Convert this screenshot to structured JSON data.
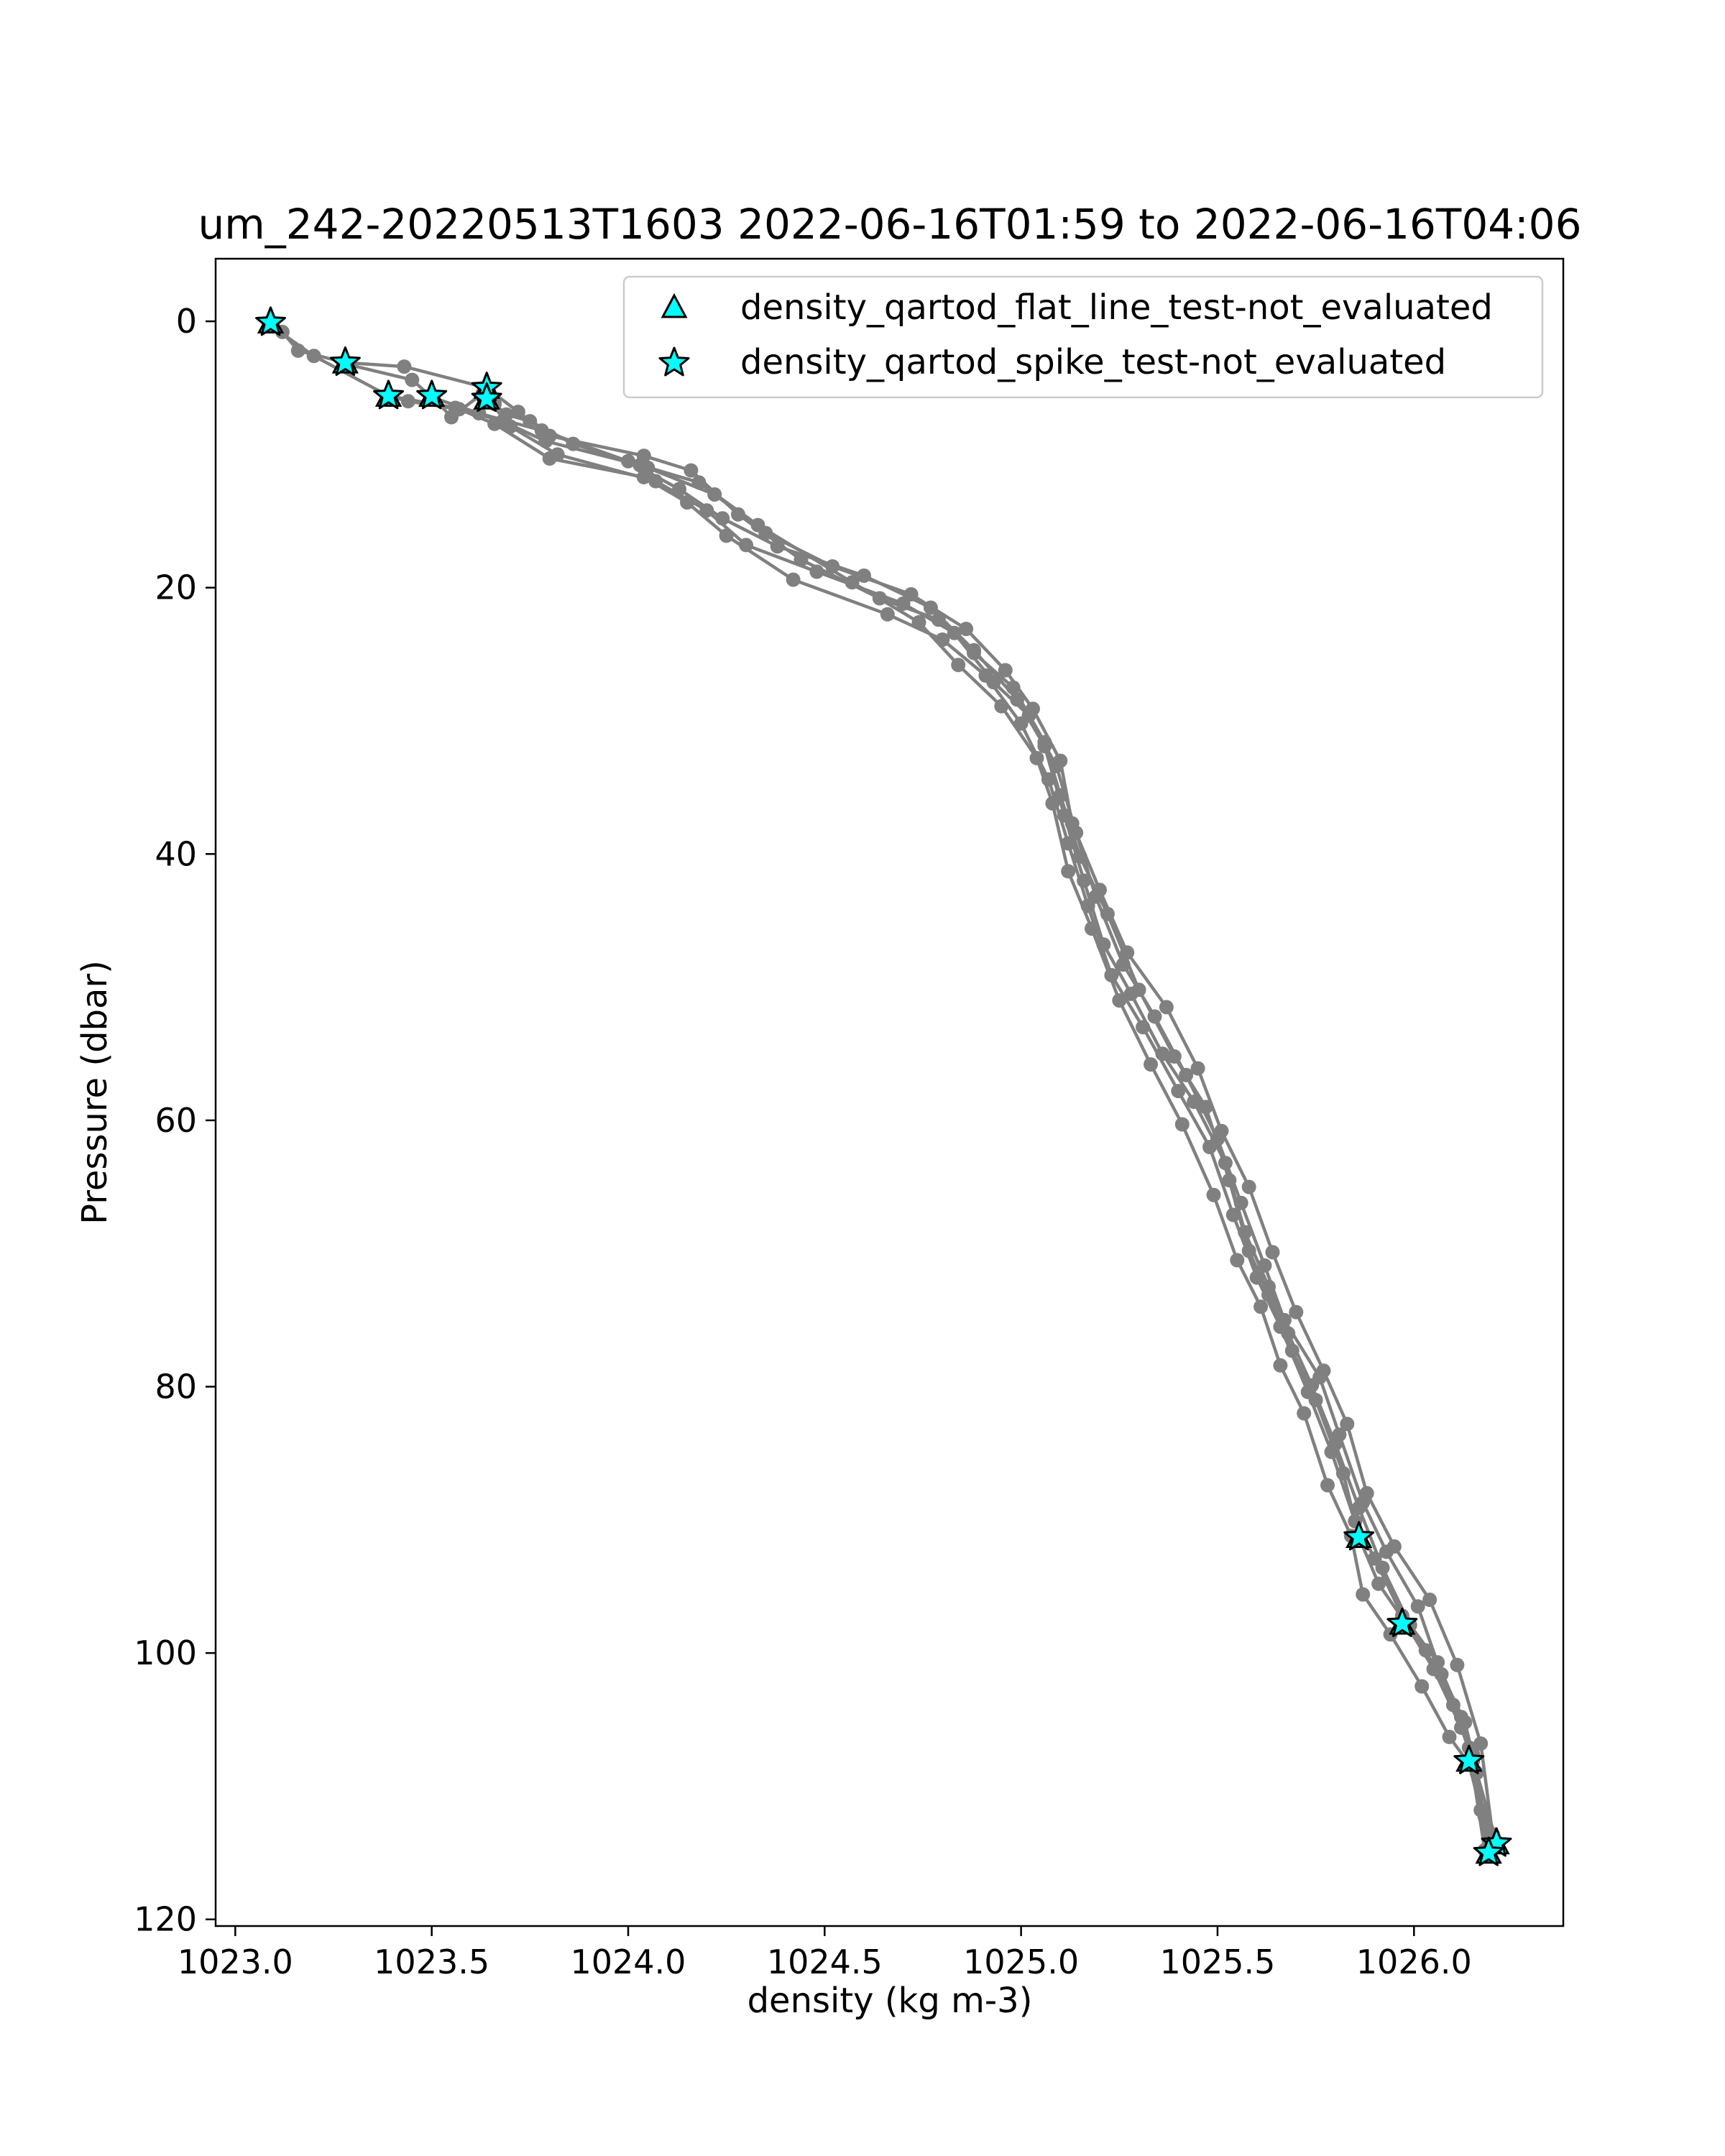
{
  "chart_data": {
    "type": "line",
    "title": "um_242-20220513T1603 2022-06-16T01:59 to 2022-06-16T04:06",
    "xlabel": "density (kg m-3)",
    "ylabel": "Pressure (dbar)",
    "xlim": [
      1022.95,
      1026.38
    ],
    "ylim": [
      120.5,
      -4.7
    ],
    "y_inverted": true,
    "x_ticks": [
      1023.0,
      1023.5,
      1024.0,
      1024.5,
      1025.0,
      1025.5,
      1026.0
    ],
    "x_tick_labels": [
      "1023.0",
      "1023.5",
      "1024.0",
      "1024.5",
      "1025.0",
      "1025.5",
      "1026.0"
    ],
    "y_ticks": [
      0,
      20,
      40,
      60,
      80,
      100,
      120
    ],
    "y_tick_labels": [
      "0",
      "20",
      "40",
      "60",
      "80",
      "100",
      "120"
    ],
    "grid": false,
    "legend_position": "upper-right",
    "line_color": "#808080",
    "marker_color": "#00ffff",
    "series": [
      {
        "x": [
          1023.09,
          1023.12,
          1023.16,
          1023.28,
          1023.43,
          1023.64,
          1023.72,
          1023.8,
          1024.04,
          1024.16,
          1024.28,
          1024.44,
          1024.64,
          1024.79,
          1024.88,
          1024.98,
          1025.06,
          1025.1,
          1025.15,
          1025.22,
          1025.3,
          1025.39,
          1025.47,
          1025.53,
          1025.58,
          1025.63,
          1025.69,
          1025.75,
          1025.82,
          1025.86,
          1025.91,
          1025.98,
          1026.05,
          1026.12,
          1026.15,
          1026.18,
          1026.21
        ],
        "y": [
          0,
          0.8,
          2.2,
          3.1,
          3.4,
          5.0,
          6.8,
          8.6,
          10.1,
          11.2,
          14.5,
          17.9,
          20.8,
          22.4,
          24.9,
          27.5,
          31.6,
          35.6,
          40.2,
          44.5,
          50.2,
          55.2,
          59.0,
          64.5,
          69.8,
          73.1,
          77.3,
          81.0,
          86.5,
          91.3,
          94.8,
          97.8,
          101.2,
          105.6,
          108.1,
          112.3,
          114.3
        ]
      },
      {
        "x": [
          1023.09,
          1023.2,
          1023.39,
          1023.56,
          1023.68,
          1023.79,
          1024.03,
          1024.18,
          1024.33,
          1024.57,
          1024.74,
          1024.84,
          1024.95,
          1025.04,
          1025.08,
          1025.12,
          1025.18,
          1025.25,
          1025.33,
          1025.41,
          1025.49,
          1025.55,
          1025.61,
          1025.66,
          1025.72,
          1025.78,
          1025.84,
          1025.87,
          1025.94,
          1026.02,
          1026.09,
          1026.14,
          1026.17,
          1026.2
        ],
        "y": [
          0.3,
          2.6,
          5.6,
          6.5,
          7.5,
          9.0,
          10.8,
          12.1,
          15.3,
          19.6,
          22.6,
          25.8,
          28.9,
          32.8,
          36.2,
          41.3,
          45.6,
          51.0,
          55.8,
          60.3,
          65.6,
          70.5,
          74.0,
          78.4,
          82.0,
          87.4,
          91.2,
          95.6,
          98.6,
          102.5,
          106.3,
          108.3,
          111.8,
          114.7
        ]
      },
      {
        "x": [
          1023.28,
          1023.45,
          1023.5,
          1023.62,
          1023.78,
          1024.0,
          1024.13,
          1024.24,
          1024.38,
          1024.6,
          1024.77,
          1024.88,
          1024.99,
          1025.06,
          1025.11,
          1025.16,
          1025.21,
          1025.28,
          1025.36,
          1025.44,
          1025.52,
          1025.57,
          1025.63,
          1025.68,
          1025.74,
          1025.8,
          1025.86,
          1025.92,
          1025.99,
          1026.06,
          1026.12,
          1026.15,
          1026.19
        ],
        "y": [
          3.2,
          4.4,
          5.7,
          6.9,
          8.2,
          10.5,
          12.6,
          14.8,
          16.9,
          19.1,
          21.5,
          24.7,
          28.4,
          31.9,
          37.1,
          42.0,
          46.8,
          50.5,
          55.0,
          58.6,
          63.2,
          68.4,
          72.5,
          76.0,
          79.9,
          84.3,
          89.1,
          93.6,
          97.9,
          100.7,
          104.8,
          107.6,
          115.2
        ]
      },
      {
        "x": [
          1023.39,
          1023.44,
          1023.57,
          1023.66,
          1023.8,
          1024.04,
          1024.15,
          1024.25,
          1024.42,
          1024.66,
          1024.8,
          1024.91,
          1025.0,
          1025.07,
          1025.12,
          1025.17,
          1025.23,
          1025.31,
          1025.4,
          1025.48,
          1025.54,
          1025.6,
          1025.66,
          1025.73,
          1025.79,
          1025.85,
          1025.9,
          1025.97,
          1026.03,
          1026.1,
          1026.14,
          1026.18
        ],
        "y": [
          5.6,
          6.0,
          6.6,
          7.7,
          10.3,
          11.7,
          13.6,
          16.1,
          19.4,
          22.0,
          23.9,
          26.6,
          30.2,
          34.4,
          39.2,
          43.9,
          49.1,
          53.0,
          57.8,
          62.0,
          67.1,
          71.8,
          75.5,
          80.4,
          84.9,
          90.1,
          92.9,
          97.2,
          99.8,
          103.9,
          107.1,
          114.8
        ]
      },
      {
        "x": [
          1023.5,
          1023.55,
          1023.63,
          1023.7,
          1023.82,
          1024.07,
          1024.2,
          1024.3,
          1024.48,
          1024.7,
          1024.83,
          1024.93,
          1025.02,
          1025.09,
          1025.14,
          1025.19,
          1025.26,
          1025.34,
          1025.42,
          1025.5,
          1025.56,
          1025.62,
          1025.67,
          1025.76,
          1025.81,
          1025.87,
          1025.93,
          1026.01,
          1026.07,
          1026.13,
          1026.16,
          1026.21
        ],
        "y": [
          5.6,
          7.2,
          5.4,
          7.9,
          10.0,
          12.0,
          14.2,
          16.8,
          18.8,
          21.2,
          23.4,
          27.1,
          29.6,
          33.4,
          38.4,
          43.2,
          48.3,
          52.2,
          56.6,
          61.4,
          66.2,
          70.9,
          75.0,
          79.3,
          83.6,
          88.7,
          92.4,
          96.5,
          101.6,
          105.2,
          109.0,
          114.2
        ]
      },
      {
        "x": [
          1023.64,
          1023.66,
          1023.69,
          1023.75,
          1023.86,
          1024.05,
          1024.22,
          1024.35,
          1024.52,
          1024.72,
          1024.86,
          1024.96,
          1025.03,
          1025.1,
          1025.13,
          1025.2,
          1025.27,
          1025.37,
          1025.45,
          1025.51,
          1025.58,
          1025.64,
          1025.7,
          1025.77,
          1025.83,
          1025.88,
          1025.95,
          1026.04,
          1026.11,
          1026.17,
          1026.2
        ],
        "y": [
          5.9,
          6.2,
          7.0,
          7.5,
          9.2,
          11.0,
          13.0,
          15.9,
          18.4,
          20.5,
          23.1,
          26.2,
          29.1,
          33.0,
          37.7,
          42.7,
          47.4,
          51.5,
          56.1,
          60.8,
          65.0,
          69.9,
          74.4,
          78.8,
          82.8,
          88.0,
          92.0,
          96.0,
          100.9,
          106.8,
          113.6
        ]
      }
    ],
    "spike_markers": {
      "label": "density_qartod_spike_test-not_evaluated",
      "x": [
        1023.09,
        1023.28,
        1023.39,
        1023.5,
        1023.64,
        1023.64,
        1025.86,
        1025.97,
        1026.14,
        1026.21,
        1026.19
      ],
      "y": [
        0.1,
        3.1,
        5.6,
        5.6,
        5.0,
        5.8,
        91.3,
        97.8,
        108.1,
        114.3,
        115.0
      ]
    },
    "flat_line_markers": {
      "label": "density_qartod_flat_line_test-not_evaluated",
      "x": [
        1023.09,
        1023.28,
        1023.39,
        1023.5,
        1023.64,
        1023.64,
        1025.86,
        1025.97,
        1026.14,
        1026.21,
        1026.19
      ],
      "y": [
        0.1,
        3.1,
        5.6,
        5.6,
        5.0,
        5.8,
        91.3,
        97.8,
        108.1,
        114.3,
        115.0
      ]
    }
  }
}
